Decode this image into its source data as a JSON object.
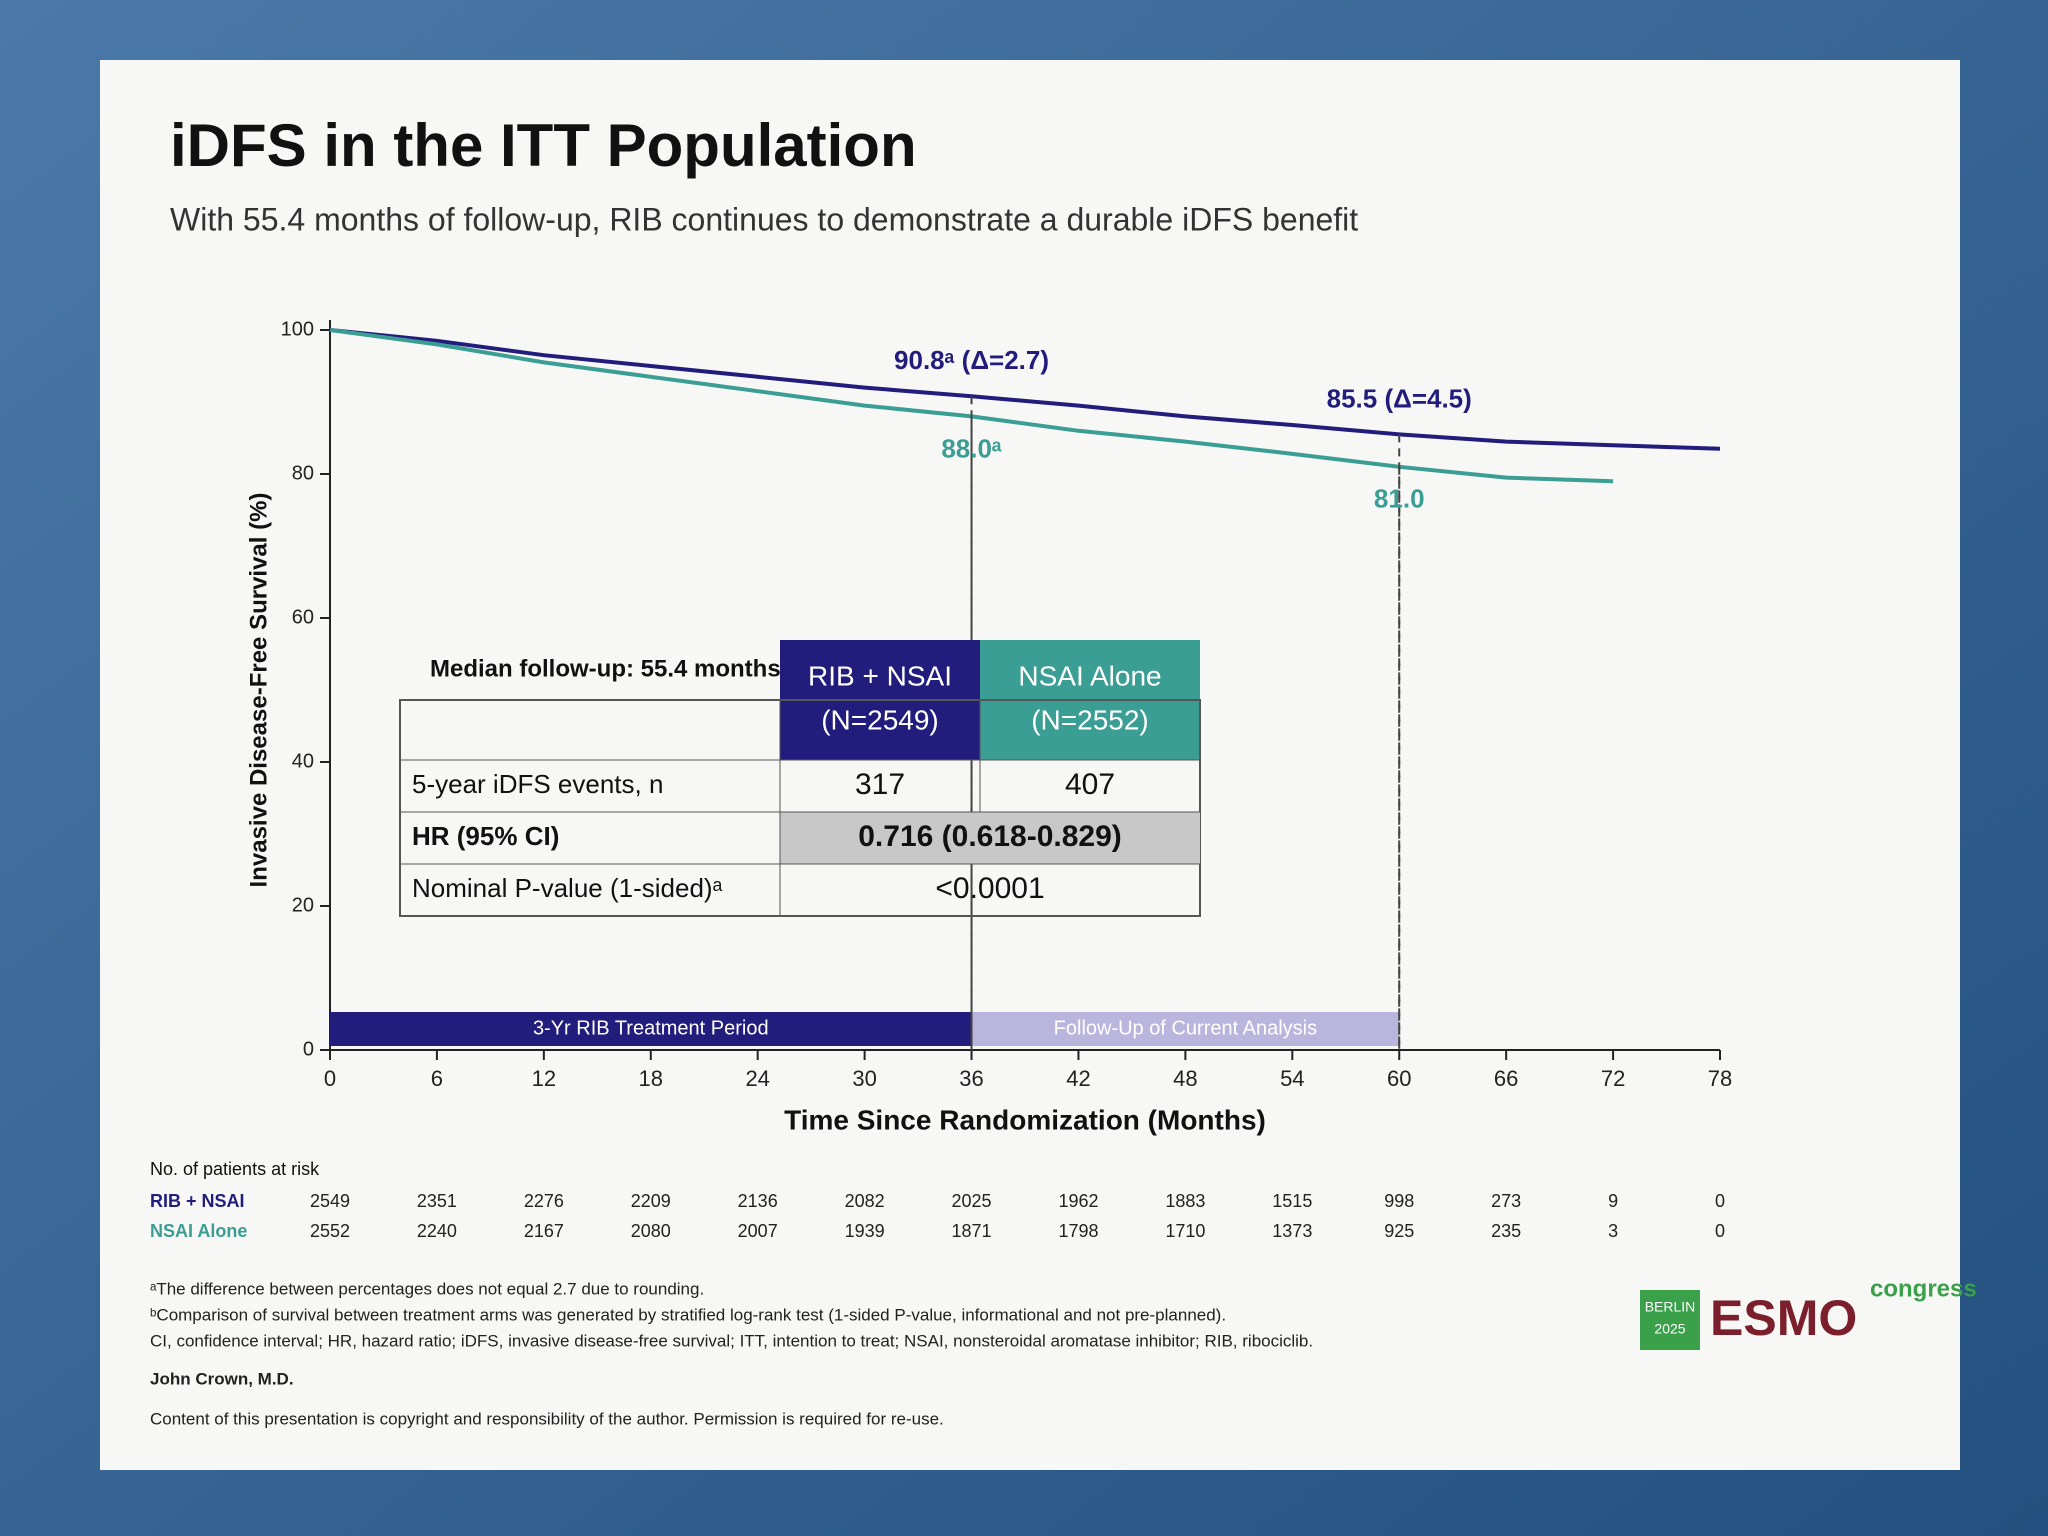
{
  "chart_data": {
    "type": "line",
    "title": "iDFS in the ITT Population",
    "subtitle": "With 55.4 months of follow-up, RIB continues to demonstrate a durable iDFS benefit",
    "x_label": "Time Since Randomization (Months)",
    "y_label": "Invasive Disease-Free Survival (%)",
    "x": [
      0,
      6,
      12,
      18,
      24,
      30,
      36,
      42,
      48,
      54,
      60,
      66,
      72,
      78
    ],
    "xlim": [
      0,
      78
    ],
    "xticks": [
      0,
      6,
      12,
      18,
      24,
      30,
      36,
      42,
      48,
      54,
      60,
      66,
      72,
      78
    ],
    "ylim": [
      0,
      100
    ],
    "yticks": [
      0,
      20,
      40,
      60,
      80,
      100
    ],
    "series": [
      {
        "name": "RIB + NSAI",
        "color": "#221c7c",
        "values": [
          100,
          98.5,
          96.5,
          95,
          93.5,
          92,
          90.8,
          89.5,
          88,
          86.8,
          85.5,
          84.5,
          84,
          83.5
        ]
      },
      {
        "name": "NSAI Alone",
        "color": "#3a9e94",
        "values": [
          100,
          98,
          95.5,
          93.5,
          91.5,
          89.5,
          88.0,
          86,
          84.5,
          82.8,
          81.0,
          79.5,
          79,
          null
        ]
      }
    ],
    "annotations": [
      {
        "label": "90.8ᵃ (Δ=2.7)",
        "x": 36,
        "y": 90.8,
        "color": "#221c7c"
      },
      {
        "label": "88.0ᵃ",
        "x": 36,
        "y": 88.0,
        "color": "#3a9e94"
      },
      {
        "label": "85.5 (Δ=4.5)",
        "x": 60,
        "y": 85.5,
        "color": "#221c7c"
      },
      {
        "label": "81.0",
        "x": 60,
        "y": 81.0,
        "color": "#3a9e94"
      }
    ],
    "periods": [
      {
        "label": "3-Yr RIB Treatment Period",
        "start": 0,
        "end": 36,
        "color": "#221c7c"
      },
      {
        "label": "Follow-Up of Current Analysis",
        "start": 36,
        "end": 60,
        "color": "#b9b5dc"
      }
    ],
    "at_risk": {
      "title": "No. of patients at risk",
      "rows": [
        [
          2549,
          2351,
          2276,
          2209,
          2136,
          2082,
          2025,
          1962,
          1883,
          1515,
          998,
          273,
          9,
          0
        ],
        [
          2552,
          2240,
          2167,
          2080,
          2007,
          1939,
          1871,
          1798,
          1710,
          1373,
          925,
          235,
          3,
          0
        ]
      ]
    }
  },
  "summary_table": {
    "caption": "Median follow-up: 55.4 months",
    "headers": [
      [
        "RIB + NSAI",
        "(N=2549)"
      ],
      [
        "NSAI Alone",
        "(N=2552)"
      ]
    ],
    "rows": [
      {
        "label": "5-year iDFS events, n",
        "cells": [
          "317",
          "407"
        ]
      },
      {
        "label": "HR (95% CI)",
        "cells": [
          "0.716 (0.618-0.829)"
        ]
      },
      {
        "label": "Nominal P-value (1-sided)ᵃ",
        "cells": [
          "<0.0001"
        ]
      }
    ]
  },
  "footnotes": [
    "ᵃThe difference between percentages does not equal 2.7 due to rounding.",
    "ᵇComparison of survival between treatment arms was generated by stratified log-rank test (1-sided P-value, informational and not pre-planned).",
    "CI, confidence interval; HR, hazard ratio; iDFS, invasive disease-free survival; ITT, intention to treat; NSAI, nonsteroidal aromatase inhibitor; RIB, ribociclib."
  ],
  "author": "John Crown, M.D.",
  "copyright": "Content of this presentation is copyright and responsibility of the author. Permission is required for re-use.",
  "logo": {
    "city": "BERLIN",
    "year": "2025",
    "name": "ESMO",
    "word": "congress"
  }
}
